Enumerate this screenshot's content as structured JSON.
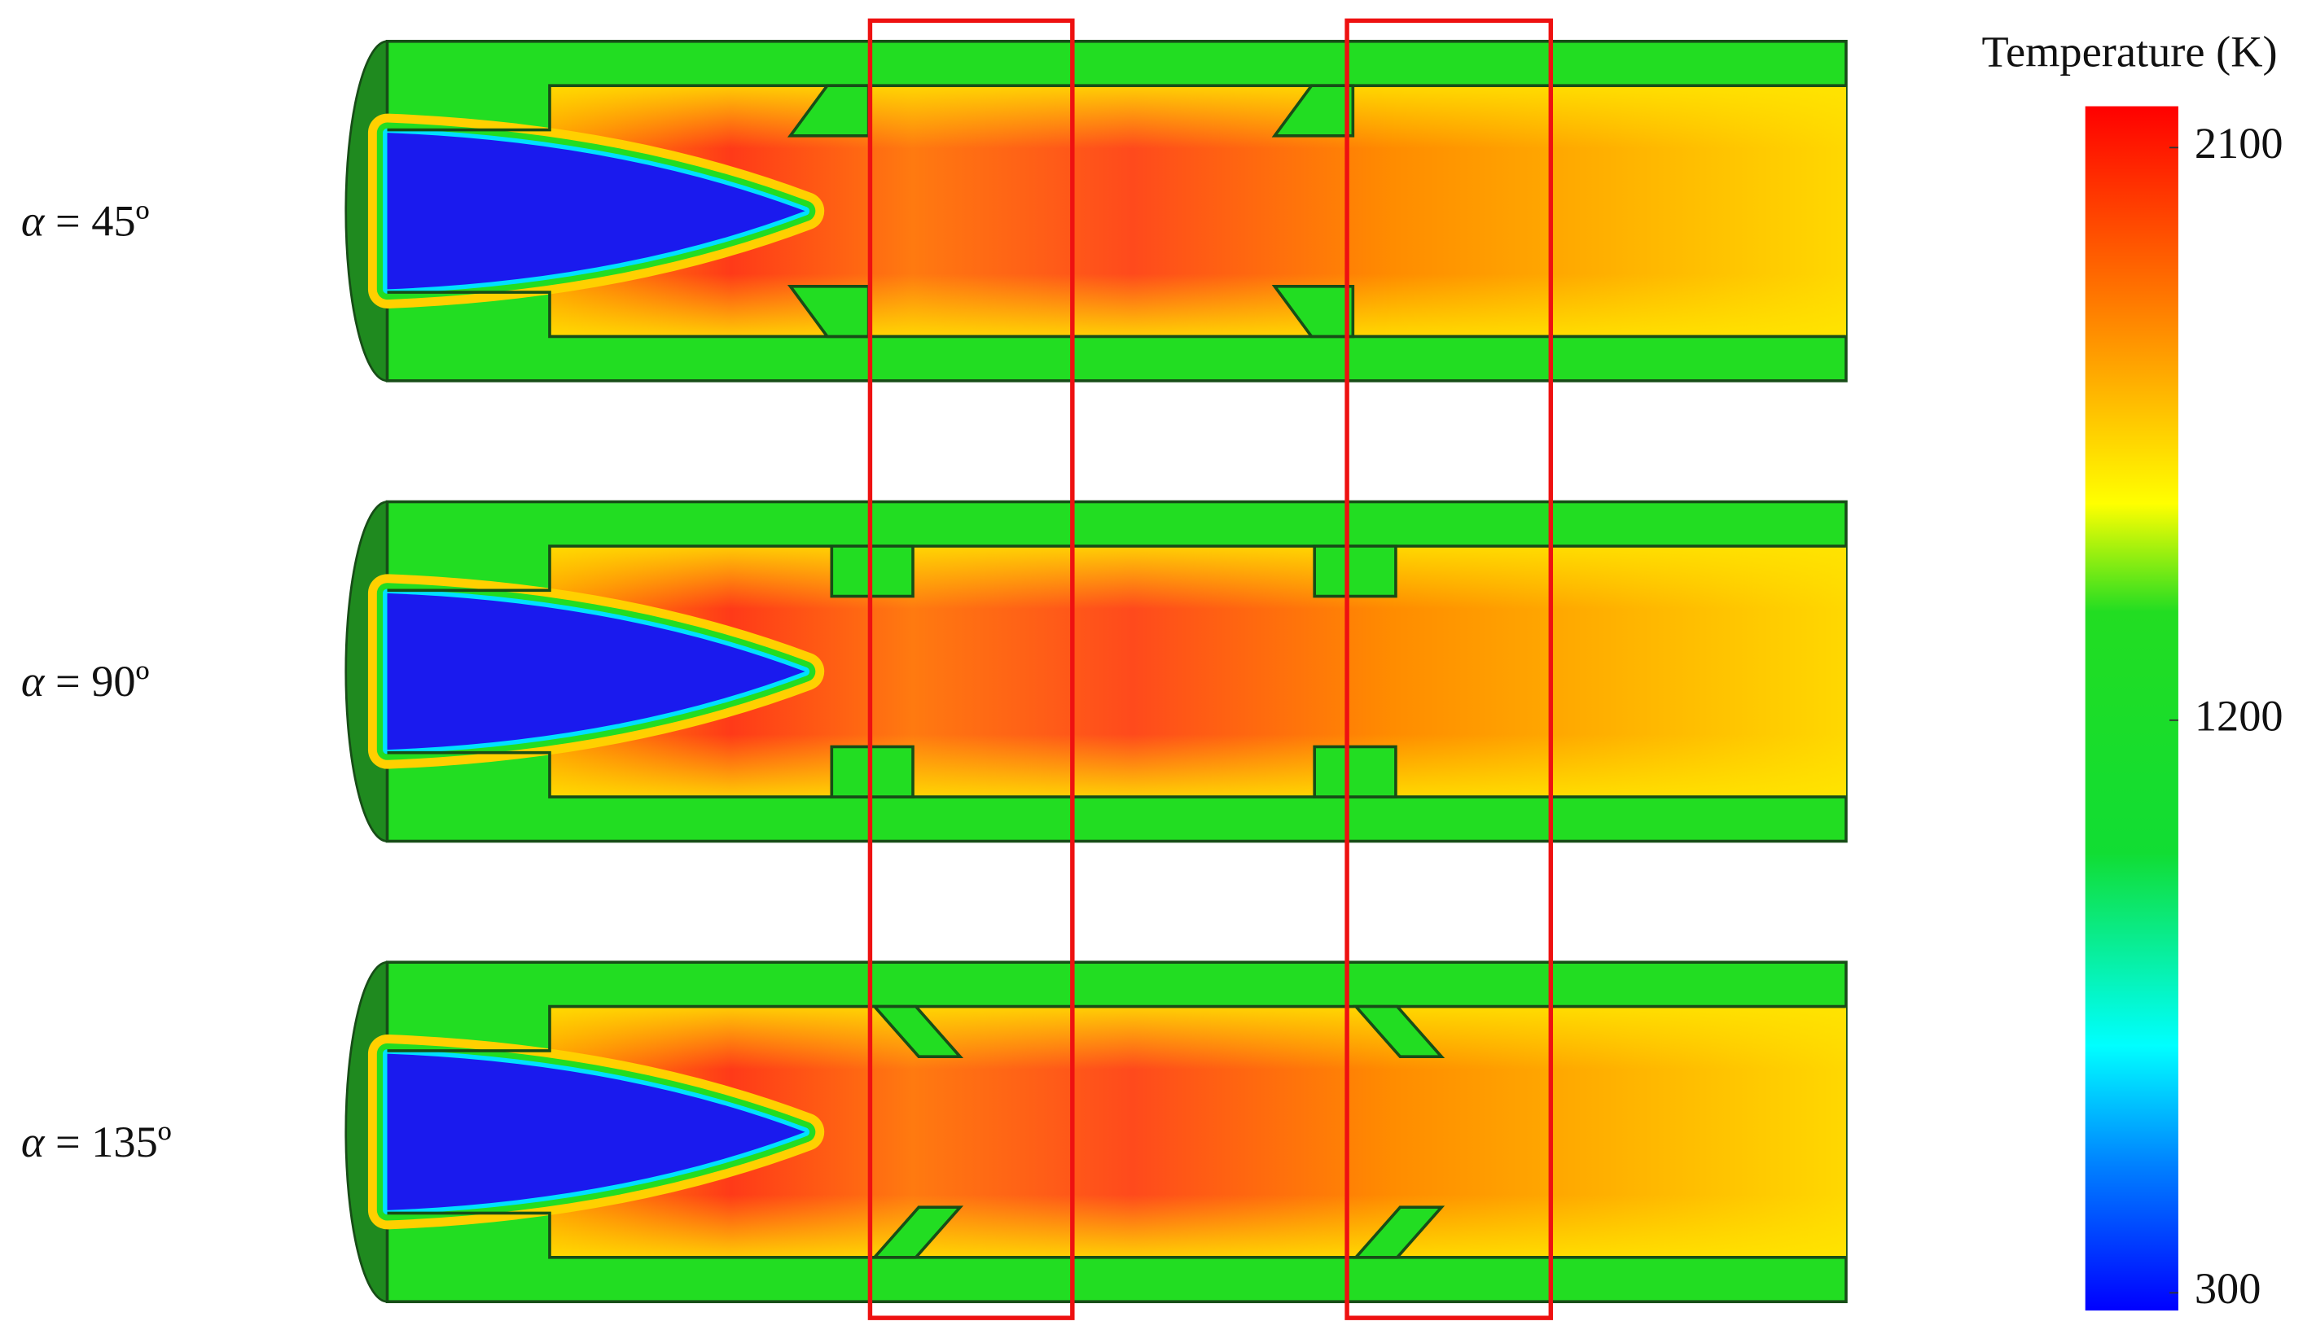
{
  "panels": [
    {
      "symbol": "α",
      "angle": "= 45º"
    },
    {
      "symbol": "α",
      "angle": "= 90º"
    },
    {
      "symbol": "α",
      "angle": "= 135º"
    }
  ],
  "colorbar": {
    "title": "Temperature (K)",
    "lim": [
      300,
      2100
    ],
    "ticks": [
      300,
      1200,
      2100
    ]
  }
}
